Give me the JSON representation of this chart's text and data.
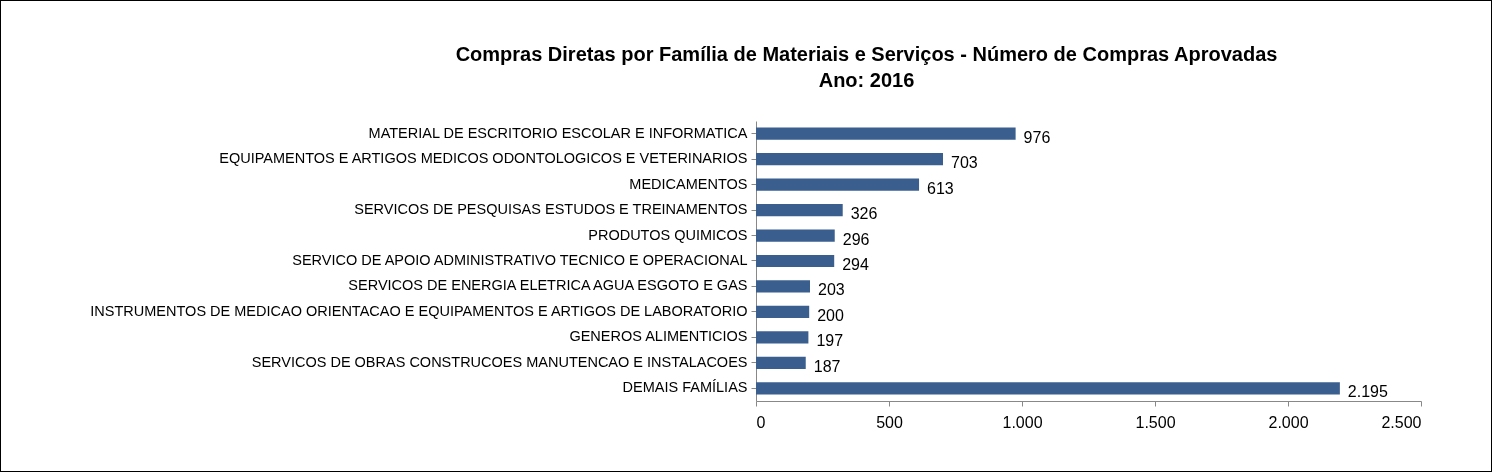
{
  "chart_data": {
    "type": "bar",
    "orientation": "horizontal",
    "title": "Compras Diretas por Família de Materiais e Serviços - Número de Compras Aprovadas",
    "subtitle": "Ano: 2016",
    "categories": [
      "MATERIAL DE ESCRITORIO  ESCOLAR E INFORMATICA",
      "EQUIPAMENTOS E ARTIGOS MEDICOS  ODONTOLOGICOS E VETERINARIOS",
      "MEDICAMENTOS",
      "SERVICOS DE PESQUISAS  ESTUDOS E TREINAMENTOS",
      "PRODUTOS QUIMICOS",
      "SERVICO DE APOIO ADMINISTRATIVO  TECNICO E OPERACIONAL",
      "SERVICOS DE ENERGIA ELETRICA  AGUA  ESGOTO E GAS",
      "INSTRUMENTOS DE MEDICAO  ORIENTACAO E EQUIPAMENTOS E ARTIGOS DE LABORATORIO",
      "GENEROS ALIMENTICIOS",
      "SERVICOS DE OBRAS  CONSTRUCOES  MANUTENCAO E INSTALACOES",
      "DEMAIS FAMÍLIAS"
    ],
    "values": [
      976,
      703,
      613,
      326,
      296,
      294,
      203,
      200,
      197,
      187,
      2195
    ],
    "value_labels": [
      "976",
      "703",
      "613",
      "326",
      "296",
      "294",
      "203",
      "200",
      "197",
      "187",
      "2.195"
    ],
    "color": "#3a5f8f",
    "xlim": [
      0,
      2500
    ],
    "xticks": [
      0,
      500,
      {
        "value": 1000,
        "label": "1.000"
      },
      {
        "value": 1500,
        "label": "1.500"
      },
      {
        "value": 2000,
        "label": "2.000"
      },
      {
        "value": 2500,
        "label": "2.500"
      }
    ],
    "grid": false
  }
}
